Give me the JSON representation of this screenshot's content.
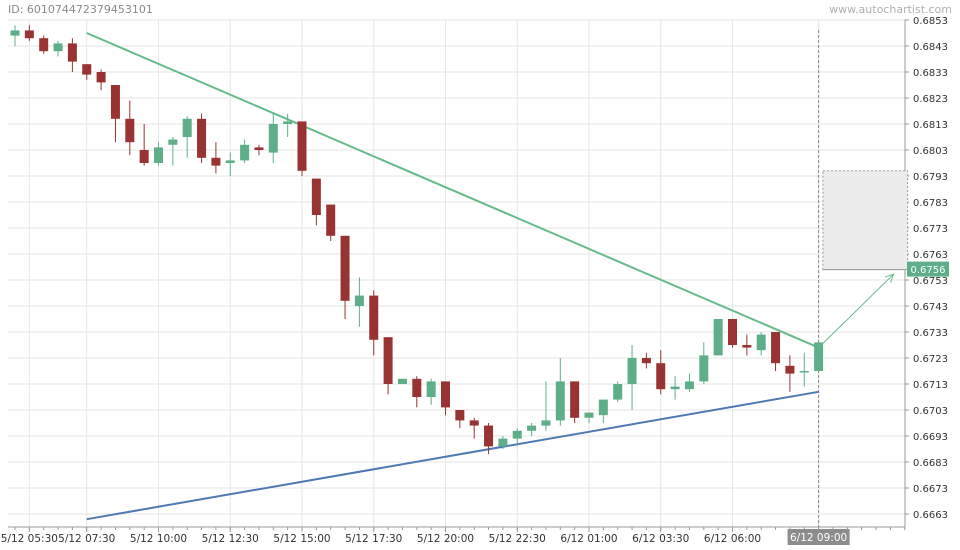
{
  "header": {
    "chart_id": "ID: 601074472379453101",
    "watermark": "www.autochartist.com"
  },
  "colors": {
    "bull": "#5fae8a",
    "bear": "#993333",
    "resistance": "#66bb8d",
    "support": "#4e79b5",
    "grid": "#e6e6e6",
    "axis": "#999999",
    "projection_fill": "#ececec",
    "price_tag_bg": "#5fae8a",
    "time_tag_bg": "#8c8c8c"
  },
  "chart_data": {
    "type": "candlestick",
    "ylim": [
      0.6658,
      0.6853
    ],
    "y_ticks": [
      "0.6853",
      "0.6843",
      "0.6833",
      "0.6823",
      "0.6813",
      "0.6803",
      "0.6793",
      "0.6783",
      "0.6773",
      "0.6763",
      "0.6753",
      "0.6743",
      "0.6733",
      "0.6723",
      "0.6713",
      "0.6703",
      "0.6693",
      "0.6683",
      "0.6673",
      "0.6663"
    ],
    "x_ticks": [
      "5/12 05:30",
      "5/12 07:30",
      "5/12 10:00",
      "5/12 12:30",
      "5/12 15:00",
      "5/12 17:30",
      "5/12 20:00",
      "5/12 22:30",
      "6/12 01:00",
      "6/12 03:30",
      "6/12 06:00",
      "6/12 09:00"
    ],
    "x_tick_positions": [
      1,
      5,
      10,
      15,
      20,
      25,
      30,
      35,
      40,
      45,
      50,
      56
    ],
    "highlight_x_tick": "6/12 09:00",
    "grid": true,
    "candles": [
      {
        "o": 0.6847,
        "h": 0.6851,
        "l": 0.6843,
        "c": 0.6849
      },
      {
        "o": 0.6849,
        "h": 0.6851,
        "l": 0.6845,
        "c": 0.6846
      },
      {
        "o": 0.6846,
        "h": 0.6847,
        "l": 0.684,
        "c": 0.6841
      },
      {
        "o": 0.6841,
        "h": 0.6845,
        "l": 0.6839,
        "c": 0.6844
      },
      {
        "o": 0.6844,
        "h": 0.6846,
        "l": 0.6833,
        "c": 0.6837
      },
      {
        "o": 0.6836,
        "h": 0.6836,
        "l": 0.683,
        "c": 0.6832
      },
      {
        "o": 0.6833,
        "h": 0.6834,
        "l": 0.6826,
        "c": 0.6829
      },
      {
        "o": 0.6828,
        "h": 0.6828,
        "l": 0.6806,
        "c": 0.6815
      },
      {
        "o": 0.6815,
        "h": 0.6822,
        "l": 0.6801,
        "c": 0.6806
      },
      {
        "o": 0.6803,
        "h": 0.6813,
        "l": 0.6797,
        "c": 0.6798
      },
      {
        "o": 0.6798,
        "h": 0.6806,
        "l": 0.6797,
        "c": 0.6804
      },
      {
        "o": 0.6805,
        "h": 0.6808,
        "l": 0.6797,
        "c": 0.6807
      },
      {
        "o": 0.6808,
        "h": 0.6816,
        "l": 0.68,
        "c": 0.6815
      },
      {
        "o": 0.6815,
        "h": 0.6817,
        "l": 0.6798,
        "c": 0.68
      },
      {
        "o": 0.68,
        "h": 0.6806,
        "l": 0.6794,
        "c": 0.6797
      },
      {
        "o": 0.6798,
        "h": 0.6802,
        "l": 0.6793,
        "c": 0.6799
      },
      {
        "o": 0.6799,
        "h": 0.6807,
        "l": 0.6798,
        "c": 0.6805
      },
      {
        "o": 0.6804,
        "h": 0.6805,
        "l": 0.6801,
        "c": 0.6803
      },
      {
        "o": 0.6802,
        "h": 0.6817,
        "l": 0.6798,
        "c": 0.6813
      },
      {
        "o": 0.6813,
        "h": 0.6817,
        "l": 0.6808,
        "c": 0.6814
      },
      {
        "o": 0.6814,
        "h": 0.6814,
        "l": 0.6793,
        "c": 0.6795
      },
      {
        "o": 0.6792,
        "h": 0.6792,
        "l": 0.6774,
        "c": 0.6778
      },
      {
        "o": 0.6782,
        "h": 0.6782,
        "l": 0.6768,
        "c": 0.677
      },
      {
        "o": 0.677,
        "h": 0.677,
        "l": 0.6738,
        "c": 0.6745
      },
      {
        "o": 0.6743,
        "h": 0.6754,
        "l": 0.6735,
        "c": 0.6747
      },
      {
        "o": 0.6747,
        "h": 0.6749,
        "l": 0.6724,
        "c": 0.673
      },
      {
        "o": 0.6731,
        "h": 0.6731,
        "l": 0.6709,
        "c": 0.6713
      },
      {
        "o": 0.6713,
        "h": 0.6715,
        "l": 0.6713,
        "c": 0.6715
      },
      {
        "o": 0.6715,
        "h": 0.6716,
        "l": 0.6704,
        "c": 0.6708
      },
      {
        "o": 0.6708,
        "h": 0.6715,
        "l": 0.6705,
        "c": 0.6714
      },
      {
        "o": 0.6714,
        "h": 0.6714,
        "l": 0.6701,
        "c": 0.6704
      },
      {
        "o": 0.6703,
        "h": 0.6703,
        "l": 0.6696,
        "c": 0.6699
      },
      {
        "o": 0.6699,
        "h": 0.67,
        "l": 0.6692,
        "c": 0.6697
      },
      {
        "o": 0.6697,
        "h": 0.6698,
        "l": 0.6686,
        "c": 0.6689
      },
      {
        "o": 0.6689,
        "h": 0.6693,
        "l": 0.6688,
        "c": 0.6692
      },
      {
        "o": 0.6692,
        "h": 0.6696,
        "l": 0.6689,
        "c": 0.6695
      },
      {
        "o": 0.6695,
        "h": 0.6698,
        "l": 0.6693,
        "c": 0.6697
      },
      {
        "o": 0.6697,
        "h": 0.6714,
        "l": 0.6695,
        "c": 0.6699
      },
      {
        "o": 0.6699,
        "h": 0.6723,
        "l": 0.6697,
        "c": 0.6714
      },
      {
        "o": 0.6714,
        "h": 0.6714,
        "l": 0.6698,
        "c": 0.67
      },
      {
        "o": 0.67,
        "h": 0.6702,
        "l": 0.6698,
        "c": 0.6702
      },
      {
        "o": 0.6701,
        "h": 0.6707,
        "l": 0.6698,
        "c": 0.6707
      },
      {
        "o": 0.6707,
        "h": 0.6714,
        "l": 0.6706,
        "c": 0.6713
      },
      {
        "o": 0.6713,
        "h": 0.6728,
        "l": 0.6703,
        "c": 0.6723
      },
      {
        "o": 0.6723,
        "h": 0.6725,
        "l": 0.6719,
        "c": 0.6721
      },
      {
        "o": 0.6721,
        "h": 0.6726,
        "l": 0.6709,
        "c": 0.6711
      },
      {
        "o": 0.6711,
        "h": 0.6716,
        "l": 0.6707,
        "c": 0.6712
      },
      {
        "o": 0.6711,
        "h": 0.6717,
        "l": 0.671,
        "c": 0.6714
      },
      {
        "o": 0.6714,
        "h": 0.6729,
        "l": 0.6713,
        "c": 0.6724
      },
      {
        "o": 0.6724,
        "h": 0.6738,
        "l": 0.6724,
        "c": 0.6738
      },
      {
        "o": 0.6738,
        "h": 0.6738,
        "l": 0.6727,
        "c": 0.6728
      },
      {
        "o": 0.6728,
        "h": 0.6732,
        "l": 0.6724,
        "c": 0.6727
      },
      {
        "o": 0.6726,
        "h": 0.6733,
        "l": 0.6724,
        "c": 0.6732
      },
      {
        "o": 0.6733,
        "h": 0.6733,
        "l": 0.6718,
        "c": 0.6721
      },
      {
        "o": 0.672,
        "h": 0.6724,
        "l": 0.671,
        "c": 0.6717
      },
      {
        "o": 0.6718,
        "h": 0.6725,
        "l": 0.6712,
        "c": 0.6718
      },
      {
        "o": 0.6718,
        "h": 0.6729,
        "l": 0.6718,
        "c": 0.6729
      }
    ],
    "resistance_line": {
      "from": {
        "i": 5,
        "y": 0.6848
      },
      "to": {
        "i": 56,
        "y": 0.6727
      }
    },
    "support_line": {
      "from": {
        "i": 5,
        "y": 0.6661
      },
      "to": {
        "i": 56,
        "y": 0.671
      }
    },
    "projection": {
      "i_from": 56.3,
      "i_to": 62.2,
      "y_low": 0.6757,
      "y_high": 0.6795
    },
    "projected_target_price": "0.6756"
  }
}
